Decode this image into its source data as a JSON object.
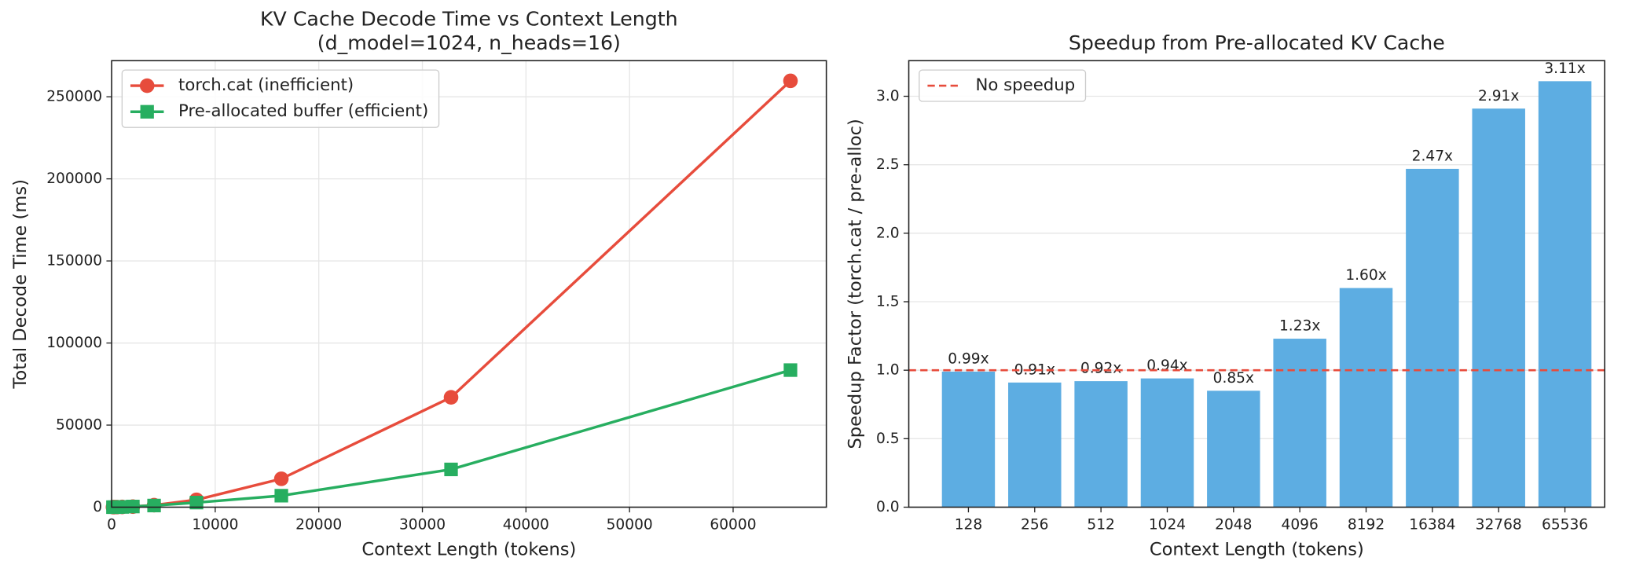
{
  "chart_data": [
    {
      "type": "line",
      "title": [
        "KV Cache Decode Time vs Context Length",
        "(d_model=1024, n_heads=16)"
      ],
      "xlabel": "Context Length (tokens)",
      "ylabel": "Total Decode Time (ms)",
      "x": [
        128,
        256,
        512,
        1024,
        2048,
        4096,
        8192,
        16384,
        32768,
        65536
      ],
      "series": [
        {
          "name": "torch.cat (inefficient)",
          "color": "#e74c3c",
          "marker": "circle",
          "values": [
            15,
            27,
            55,
            141,
            340,
            1230,
            4480,
            17290,
            66900,
            259700
          ]
        },
        {
          "name": "Pre-allocated buffer (efficient)",
          "color": "#27ae60",
          "marker": "square",
          "values": [
            15,
            30,
            60,
            150,
            400,
            1000,
            2800,
            7000,
            23000,
            83500
          ]
        }
      ],
      "xlim": [
        0,
        69000
      ],
      "xticks": [
        0,
        10000,
        20000,
        30000,
        40000,
        50000,
        60000
      ],
      "ylim": [
        0,
        272000
      ],
      "yticks": [
        0,
        50000,
        100000,
        150000,
        200000,
        250000
      ],
      "grid": "both",
      "legend": "upper left"
    },
    {
      "type": "bar",
      "title": [
        "Speedup from Pre-allocated KV Cache"
      ],
      "xlabel": "Context Length (tokens)",
      "ylabel": "Speedup Factor (torch.cat / pre-alloc)",
      "categories": [
        "128",
        "256",
        "512",
        "1024",
        "2048",
        "4096",
        "8192",
        "16384",
        "32768",
        "65536"
      ],
      "values": [
        0.99,
        0.91,
        0.92,
        0.94,
        0.85,
        1.23,
        1.6,
        2.47,
        2.91,
        3.11
      ],
      "value_labels": [
        "0.99x",
        "0.91x",
        "0.92x",
        "0.94x",
        "0.85x",
        "1.23x",
        "1.60x",
        "2.47x",
        "2.91x",
        "3.11x"
      ],
      "color": "#5dade2",
      "reference_line": {
        "name": "No speedup",
        "value": 1.0,
        "color": "#e74c3c"
      },
      "ylim": [
        0,
        3.26
      ],
      "yticks": [
        {
          "value": 0,
          "label": "0.0"
        },
        {
          "value": 0.5,
          "label": "0.5"
        },
        {
          "value": 1,
          "label": "1.0"
        },
        {
          "value": 1.5,
          "label": "1.5"
        },
        {
          "value": 2,
          "label": "2.0"
        },
        {
          "value": 2.5,
          "label": "2.5"
        },
        {
          "value": 3,
          "label": "3.0"
        }
      ],
      "grid": "y",
      "legend": "upper left"
    }
  ]
}
